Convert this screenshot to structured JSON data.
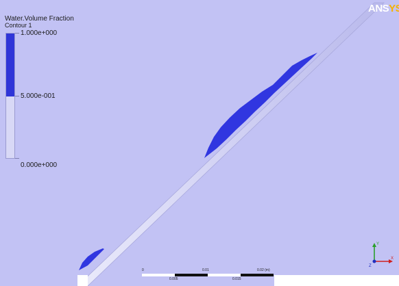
{
  "legend": {
    "title": "Water.Volume Fraction",
    "subtitle": "Contour 1",
    "max_label": "1.000e+000",
    "mid_label": "5.000e-001",
    "min_label": "0.000e+000",
    "color_high": "#2f35d8",
    "color_low": "#d8d8f6"
  },
  "logo": {
    "part1": "ANS",
    "part2": "YS"
  },
  "scale": {
    "top_labels": [
      "0",
      "0.01",
      "0.02 (m)"
    ],
    "bottom_labels": [
      "0.005",
      "0.015"
    ]
  },
  "triad": {
    "y_label": "Y",
    "x_label": "X",
    "z_label": "Z"
  },
  "colors": {
    "background": "#c2c2f4",
    "plate_fill": "#dcdcf8",
    "water": "#3036e0",
    "axis_y": "#2aa02a",
    "axis_x": "#d02020",
    "axis_z": "#2030c0"
  }
}
